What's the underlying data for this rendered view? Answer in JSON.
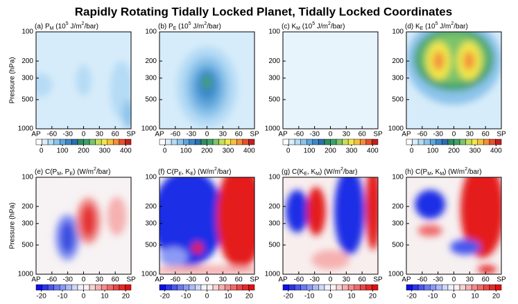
{
  "title": "Rapidly Rotating Tidally Locked Planet, Tidally Locked Coordinates",
  "chart_data": [
    {
      "type": "contour",
      "title": [
        {
          "text": "(a) P"
        },
        {
          "text": "M",
          "shift": "sub"
        },
        {
          "text": "   (10"
        },
        {
          "text": "5",
          "shift": "super"
        },
        {
          "text": " J/m"
        },
        {
          "text": "2",
          "shift": "super"
        },
        {
          "text": "/bar)"
        }
      ],
      "ylabel": "Pressure (hPa)",
      "xlim": [
        -90,
        90
      ],
      "xticks": [
        {
          "value": -90,
          "label": "AP"
        },
        -60,
        -30,
        0,
        30,
        60,
        {
          "value": 90,
          "label": "SP"
        }
      ],
      "ylim": [
        1000,
        100
      ],
      "ylog": true,
      "yticks": [
        100,
        200,
        300,
        500,
        1000
      ],
      "colorbar": {
        "lim": [
          -25,
          425
        ],
        "ticks": [
          0,
          100,
          200,
          300,
          400
        ],
        "colors": [
          "#ffffff",
          "#d9eefa",
          "#b5dbf5",
          "#8cc3ea",
          "#5fa6dc",
          "#3b88c8",
          "#2f6fb0",
          "#2f8f60",
          "#3fa06a",
          "#7cc36a",
          "#c6de5a",
          "#f2e84a",
          "#f6c040",
          "#f2903a",
          "#e8502e",
          "#c0201e"
        ]
      }
    },
    {
      "type": "contour",
      "title": [
        {
          "text": "(b) P"
        },
        {
          "text": "E",
          "shift": "sub"
        },
        {
          "text": "   (10"
        },
        {
          "text": "5",
          "shift": "super"
        },
        {
          "text": " J/m"
        },
        {
          "text": "2",
          "shift": "super"
        },
        {
          "text": "/bar)"
        }
      ],
      "xlim": [
        -90,
        90
      ],
      "xticks": [
        {
          "value": -90,
          "label": "AP"
        },
        -60,
        -30,
        0,
        30,
        60,
        {
          "value": 90,
          "label": "SP"
        }
      ],
      "ylim": [
        1000,
        100
      ],
      "ylog": true,
      "yticks": [
        100,
        200,
        300,
        500,
        1000
      ],
      "colorbar": {
        "lim": [
          -25,
          425
        ],
        "ticks": [
          0,
          100,
          200,
          300,
          400
        ],
        "colors": [
          "#ffffff",
          "#d9eefa",
          "#b5dbf5",
          "#8cc3ea",
          "#5fa6dc",
          "#3b88c8",
          "#2f6fb0",
          "#2f8f60",
          "#3fa06a",
          "#7cc36a",
          "#c6de5a",
          "#f2e84a",
          "#f6c040",
          "#f2903a",
          "#e8502e",
          "#c0201e"
        ]
      }
    },
    {
      "type": "contour",
      "title": [
        {
          "text": "(c) K"
        },
        {
          "text": "M",
          "shift": "sub"
        },
        {
          "text": "   (10"
        },
        {
          "text": "5",
          "shift": "super"
        },
        {
          "text": " J/m"
        },
        {
          "text": "2",
          "shift": "super"
        },
        {
          "text": "/bar)"
        }
      ],
      "xlim": [
        -90,
        90
      ],
      "xticks": [
        {
          "value": -90,
          "label": "AP"
        },
        -60,
        -30,
        0,
        30,
        60,
        {
          "value": 90,
          "label": "SP"
        }
      ],
      "ylim": [
        1000,
        100
      ],
      "ylog": true,
      "yticks": [
        100,
        200,
        300,
        500,
        1000
      ],
      "colorbar": {
        "lim": [
          -25,
          425
        ],
        "ticks": [
          0,
          100,
          200,
          300,
          400
        ],
        "colors": [
          "#ffffff",
          "#d9eefa",
          "#b5dbf5",
          "#8cc3ea",
          "#5fa6dc",
          "#3b88c8",
          "#2f6fb0",
          "#2f8f60",
          "#3fa06a",
          "#7cc36a",
          "#c6de5a",
          "#f2e84a",
          "#f6c040",
          "#f2903a",
          "#e8502e",
          "#c0201e"
        ]
      }
    },
    {
      "type": "contour",
      "title": [
        {
          "text": "(d) K"
        },
        {
          "text": "E",
          "shift": "sub"
        },
        {
          "text": "   (10"
        },
        {
          "text": "5",
          "shift": "super"
        },
        {
          "text": " J/m"
        },
        {
          "text": "2",
          "shift": "super"
        },
        {
          "text": "/bar)"
        }
      ],
      "xlim": [
        -90,
        90
      ],
      "xticks": [
        {
          "value": -90,
          "label": "AP"
        },
        -60,
        -30,
        0,
        30,
        60,
        {
          "value": 90,
          "label": "SP"
        }
      ],
      "ylim": [
        1000,
        100
      ],
      "ylog": true,
      "yticks": [
        100,
        200,
        300,
        500,
        1000
      ],
      "colorbar": {
        "lim": [
          -25,
          425
        ],
        "ticks": [
          0,
          100,
          200,
          300,
          400
        ],
        "colors": [
          "#ffffff",
          "#d9eefa",
          "#b5dbf5",
          "#8cc3ea",
          "#5fa6dc",
          "#3b88c8",
          "#2f6fb0",
          "#2f8f60",
          "#3fa06a",
          "#7cc36a",
          "#c6de5a",
          "#f2e84a",
          "#f6c040",
          "#f2903a",
          "#e8502e",
          "#c0201e"
        ]
      }
    },
    {
      "type": "contour",
      "title": [
        {
          "text": "(e) C(P"
        },
        {
          "text": "M",
          "shift": "sub"
        },
        {
          "text": ", P"
        },
        {
          "text": "E",
          "shift": "sub"
        },
        {
          "text": ")   (W/m"
        },
        {
          "text": "2",
          "shift": "super"
        },
        {
          "text": "/bar)"
        }
      ],
      "ylabel": "Pressure (hPa)",
      "xlim": [
        -90,
        90
      ],
      "xticks": [
        {
          "value": -90,
          "label": "AP"
        },
        -60,
        -30,
        0,
        30,
        60,
        {
          "value": 90,
          "label": "SP"
        }
      ],
      "ylim": [
        1000,
        100
      ],
      "ylog": true,
      "yticks": [
        100,
        200,
        300,
        500,
        1000
      ],
      "colorbar": {
        "lim": [
          -22.5,
          22.5
        ],
        "ticks": [
          -20,
          -10,
          0,
          10,
          20
        ],
        "colors": [
          "#0a10e8",
          "#2a35ea",
          "#4a58ee",
          "#6a7af0",
          "#8c9af4",
          "#aebaf6",
          "#cfd8fa",
          "#f0f2fc",
          "#fcf0f0",
          "#fad2d2",
          "#f6b0b0",
          "#f28c8c",
          "#ee6a6a",
          "#ea4848",
          "#e62a2a",
          "#e40e0e"
        ]
      }
    },
    {
      "type": "contour",
      "title": [
        {
          "text": "(f) C(P"
        },
        {
          "text": "E",
          "shift": "sub"
        },
        {
          "text": ", K"
        },
        {
          "text": "E",
          "shift": "sub"
        },
        {
          "text": ")   (W/m"
        },
        {
          "text": "2",
          "shift": "super"
        },
        {
          "text": "/bar)"
        }
      ],
      "xlim": [
        -90,
        90
      ],
      "xticks": [
        {
          "value": -90,
          "label": "AP"
        },
        -60,
        -30,
        0,
        30,
        60,
        {
          "value": 90,
          "label": "SP"
        }
      ],
      "ylim": [
        1000,
        100
      ],
      "ylog": true,
      "yticks": [
        100,
        200,
        300,
        500,
        1000
      ],
      "colorbar": {
        "lim": [
          -22.5,
          22.5
        ],
        "ticks": [
          -20,
          -10,
          0,
          10,
          20
        ],
        "colors": [
          "#0a10e8",
          "#2a35ea",
          "#4a58ee",
          "#6a7af0",
          "#8c9af4",
          "#aebaf6",
          "#cfd8fa",
          "#f0f2fc",
          "#fcf0f0",
          "#fad2d2",
          "#f6b0b0",
          "#f28c8c",
          "#ee6a6a",
          "#ea4848",
          "#e62a2a",
          "#e40e0e"
        ]
      }
    },
    {
      "type": "contour",
      "title": [
        {
          "text": "(g) C(K"
        },
        {
          "text": "E",
          "shift": "sub"
        },
        {
          "text": ", K"
        },
        {
          "text": "M",
          "shift": "sub"
        },
        {
          "text": ")   (W/m"
        },
        {
          "text": "2",
          "shift": "super"
        },
        {
          "text": "/bar)"
        }
      ],
      "xlim": [
        -90,
        90
      ],
      "xticks": [
        {
          "value": -90,
          "label": "AP"
        },
        -60,
        -30,
        0,
        30,
        60,
        {
          "value": 90,
          "label": "SP"
        }
      ],
      "ylim": [
        1000,
        100
      ],
      "ylog": true,
      "yticks": [
        100,
        200,
        300,
        500,
        1000
      ],
      "colorbar": {
        "lim": [
          -22.5,
          22.5
        ],
        "ticks": [
          -20,
          -10,
          0,
          10,
          20
        ],
        "colors": [
          "#0a10e8",
          "#2a35ea",
          "#4a58ee",
          "#6a7af0",
          "#8c9af4",
          "#aebaf6",
          "#cfd8fa",
          "#f0f2fc",
          "#fcf0f0",
          "#fad2d2",
          "#f6b0b0",
          "#f28c8c",
          "#ee6a6a",
          "#ea4848",
          "#e62a2a",
          "#e40e0e"
        ]
      }
    },
    {
      "type": "contour",
      "title": [
        {
          "text": "(h) C(P"
        },
        {
          "text": "M",
          "shift": "sub"
        },
        {
          "text": ", K"
        },
        {
          "text": "M",
          "shift": "sub"
        },
        {
          "text": ")   (W/m"
        },
        {
          "text": "2",
          "shift": "super"
        },
        {
          "text": "/bar)"
        }
      ],
      "xlim": [
        -90,
        90
      ],
      "xticks": [
        {
          "value": -90,
          "label": "AP"
        },
        -60,
        -30,
        0,
        30,
        60,
        {
          "value": 90,
          "label": "SP"
        }
      ],
      "ylim": [
        1000,
        100
      ],
      "ylog": true,
      "yticks": [
        100,
        200,
        300,
        500,
        1000
      ],
      "colorbar": {
        "lim": [
          -22.5,
          22.5
        ],
        "ticks": [
          -20,
          -10,
          0,
          10,
          20
        ],
        "colors": [
          "#0a10e8",
          "#2a35ea",
          "#4a58ee",
          "#6a7af0",
          "#8c9af4",
          "#aebaf6",
          "#cfd8fa",
          "#f0f2fc",
          "#fcf0f0",
          "#fad2d2",
          "#f6b0b0",
          "#f28c8c",
          "#ee6a6a",
          "#ea4848",
          "#e62a2a",
          "#e40e0e"
        ]
      }
    }
  ]
}
